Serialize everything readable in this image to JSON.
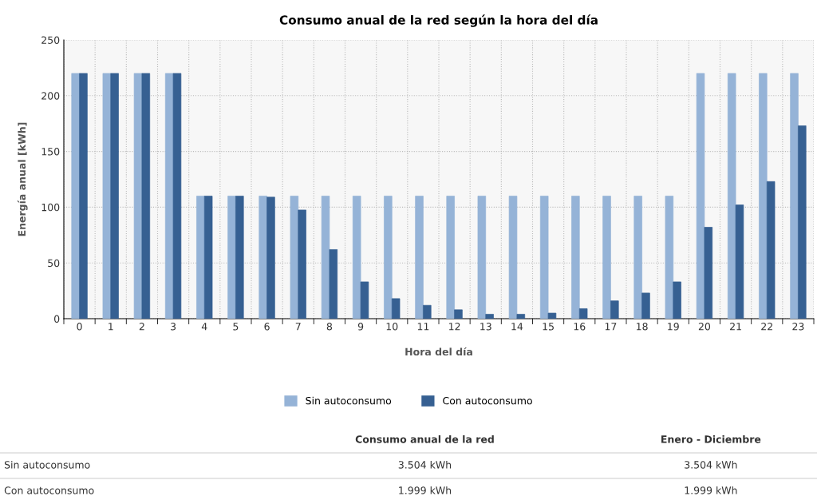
{
  "chart_data": {
    "type": "bar",
    "title": "Consumo anual de la red según la hora del día",
    "xlabel": "Hora del día",
    "ylabel": "Energía anual [kWh]",
    "categories": [
      "0",
      "1",
      "2",
      "3",
      "4",
      "5",
      "6",
      "7",
      "8",
      "9",
      "10",
      "11",
      "12",
      "13",
      "14",
      "15",
      "16",
      "17",
      "18",
      "19",
      "20",
      "21",
      "22",
      "23"
    ],
    "series": [
      {
        "name": "Sin autoconsumo",
        "color": "#95b3d7",
        "values": [
          220,
          220,
          220,
          220,
          110,
          110,
          110,
          110,
          110,
          110,
          110,
          110,
          110,
          110,
          110,
          110,
          110,
          110,
          110,
          110,
          220,
          220,
          220,
          220
        ]
      },
      {
        "name": "Con autoconsumo",
        "color": "#366092",
        "values": [
          220,
          220,
          220,
          220,
          110,
          110,
          109,
          97.5,
          62,
          33,
          18,
          12,
          8,
          4,
          4,
          5,
          9,
          16,
          23,
          33,
          82,
          102,
          123,
          173
        ]
      }
    ],
    "ylim": [
      0,
      250
    ],
    "yticks": [
      0,
      50,
      100,
      150,
      200,
      250
    ],
    "grid": true,
    "legend": "bottom",
    "annotations": [
      "Consumo anual de la red",
      "Enero - Diciembre",
      "Sin autoconsumo",
      "3.504 kWh",
      "3.504 kWh",
      "Con autoconsumo",
      "1.999 kWh",
      "1.999 kWh"
    ]
  }
}
